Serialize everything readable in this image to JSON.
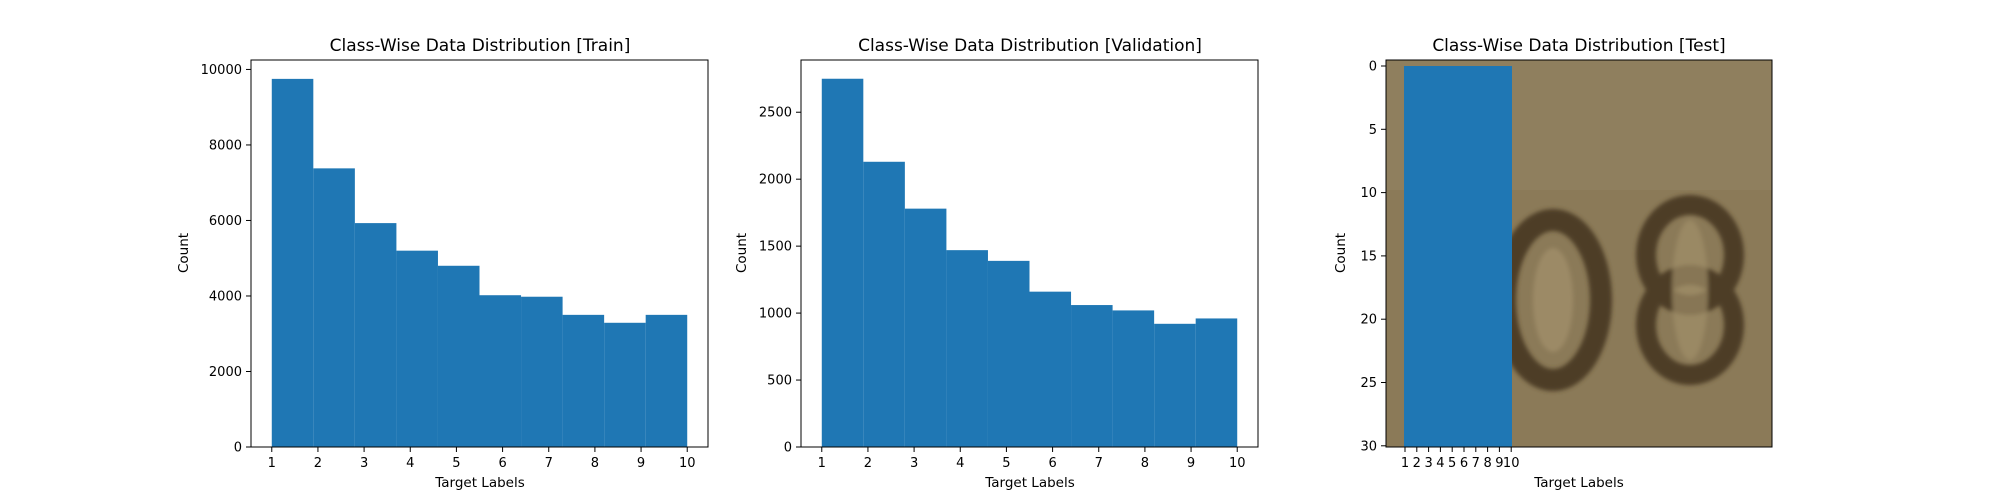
{
  "chart_data": [
    {
      "type": "bar",
      "title": "Class-Wise Data Distribution [Train]",
      "xlabel": "Target Labels",
      "ylabel": "Count",
      "categories": [
        "1",
        "2",
        "3",
        "4",
        "5",
        "6",
        "7",
        "8",
        "9",
        "10"
      ],
      "values": [
        9750,
        7380,
        5930,
        5200,
        4800,
        4020,
        3980,
        3500,
        3290,
        3500
      ],
      "xlim": [
        0.55,
        10.45
      ],
      "ylim": [
        0,
        10250
      ],
      "xticks": [
        1,
        2,
        3,
        4,
        5,
        6,
        7,
        8,
        9,
        10
      ],
      "yticks": [
        0,
        2000,
        4000,
        6000,
        8000,
        10000
      ],
      "bar_color": "#1f77b4"
    },
    {
      "type": "bar",
      "title": "Class-Wise Data Distribution [Validation]",
      "xlabel": "Target Labels",
      "ylabel": "Count",
      "categories": [
        "1",
        "2",
        "3",
        "4",
        "5",
        "6",
        "7",
        "8",
        "9",
        "10"
      ],
      "values": [
        2750,
        2130,
        1780,
        1470,
        1390,
        1160,
        1060,
        1020,
        920,
        960
      ],
      "xlim": [
        0.55,
        10.45
      ],
      "ylim": [
        0,
        2890
      ],
      "xticks": [
        1,
        2,
        3,
        4,
        5,
        6,
        7,
        8,
        9,
        10
      ],
      "yticks": [
        0,
        500,
        1000,
        1500,
        2000,
        2500
      ],
      "bar_color": "#1f77b4"
    },
    {
      "type": "bar",
      "title": "Class-Wise Data Distribution [Test]",
      "xlabel": "Target Labels",
      "ylabel": "Count",
      "categories": [
        "1",
        "2",
        "3",
        "4",
        "5",
        "6",
        "7",
        "8",
        "9",
        "10"
      ],
      "xticks": [
        1,
        2,
        3,
        4,
        5,
        6,
        7,
        8,
        9,
        10
      ],
      "yticks": [
        0,
        5,
        10,
        15,
        20,
        25,
        30
      ],
      "y_inverted": true,
      "background_image": "digit photo",
      "bar_color": "#1f77b4"
    }
  ]
}
